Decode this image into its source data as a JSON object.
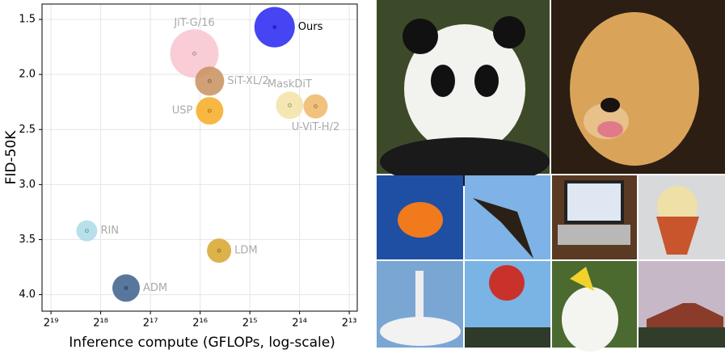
{
  "chart_data": {
    "type": "scatter",
    "xlabel": "Inference compute (GFLOPs, log-scale)",
    "ylabel": "FID-50K",
    "xscale": "log2",
    "xlim": [
      594000,
      7330
    ],
    "ylim": [
      4.15,
      1.36
    ],
    "xticks": [
      {
        "value": 524288,
        "label": "2¹⁹"
      },
      {
        "value": 262144,
        "label": "2¹⁸"
      },
      {
        "value": 131072,
        "label": "2¹⁷"
      },
      {
        "value": 65536,
        "label": "2¹⁶"
      },
      {
        "value": 32768,
        "label": "2¹⁵"
      },
      {
        "value": 16384,
        "label": "2¹⁴"
      },
      {
        "value": 8192,
        "label": "2¹³"
      }
    ],
    "yticks": [
      1.5,
      {
        "value": 2,
        "label": "2.0"
      },
      2.5,
      {
        "value": 3,
        "label": "3.0"
      },
      3.5,
      {
        "value": 4,
        "label": "4.0"
      }
    ],
    "grid": true,
    "series": [
      {
        "name": "Ours",
        "color": "#2424f2",
        "x": [
          23200
        ],
        "values": [
          1.57
        ],
        "sizes": [
          25
        ]
      },
      {
        "name": "JiT-G/16",
        "color": "#f9c4cf",
        "x": [
          71000
        ],
        "values": [
          1.81
        ],
        "sizes": [
          30
        ]
      },
      {
        "name": "SiT-XL/2",
        "color": "#c8905e",
        "x": [
          57400
        ],
        "values": [
          2.06
        ],
        "sizes": [
          18
        ]
      },
      {
        "name": "USP",
        "color": "#f6ac22",
        "x": [
          57400
        ],
        "values": [
          2.33
        ],
        "sizes": [
          17
        ]
      },
      {
        "name": "MaskDiT",
        "color": "#f2e3a6",
        "x": [
          18800
        ],
        "values": [
          2.28
        ],
        "sizes": [
          17
        ]
      },
      {
        "name": "U-ViT-H/2",
        "color": "#efb767",
        "x": [
          13100
        ],
        "values": [
          2.29
        ],
        "sizes": [
          15
        ]
      },
      {
        "name": "RIN",
        "color": "#abdbe9",
        "x": [
          318000
        ],
        "values": [
          3.42
        ],
        "sizes": [
          13
        ]
      },
      {
        "name": "LDM",
        "color": "#d6a42a",
        "x": [
          50300
        ],
        "values": [
          3.6
        ],
        "sizes": [
          15
        ]
      },
      {
        "name": "ADM",
        "color": "#3c5f8c",
        "x": [
          184000
        ],
        "values": [
          3.94
        ],
        "sizes": [
          17
        ]
      }
    ]
  }
}
